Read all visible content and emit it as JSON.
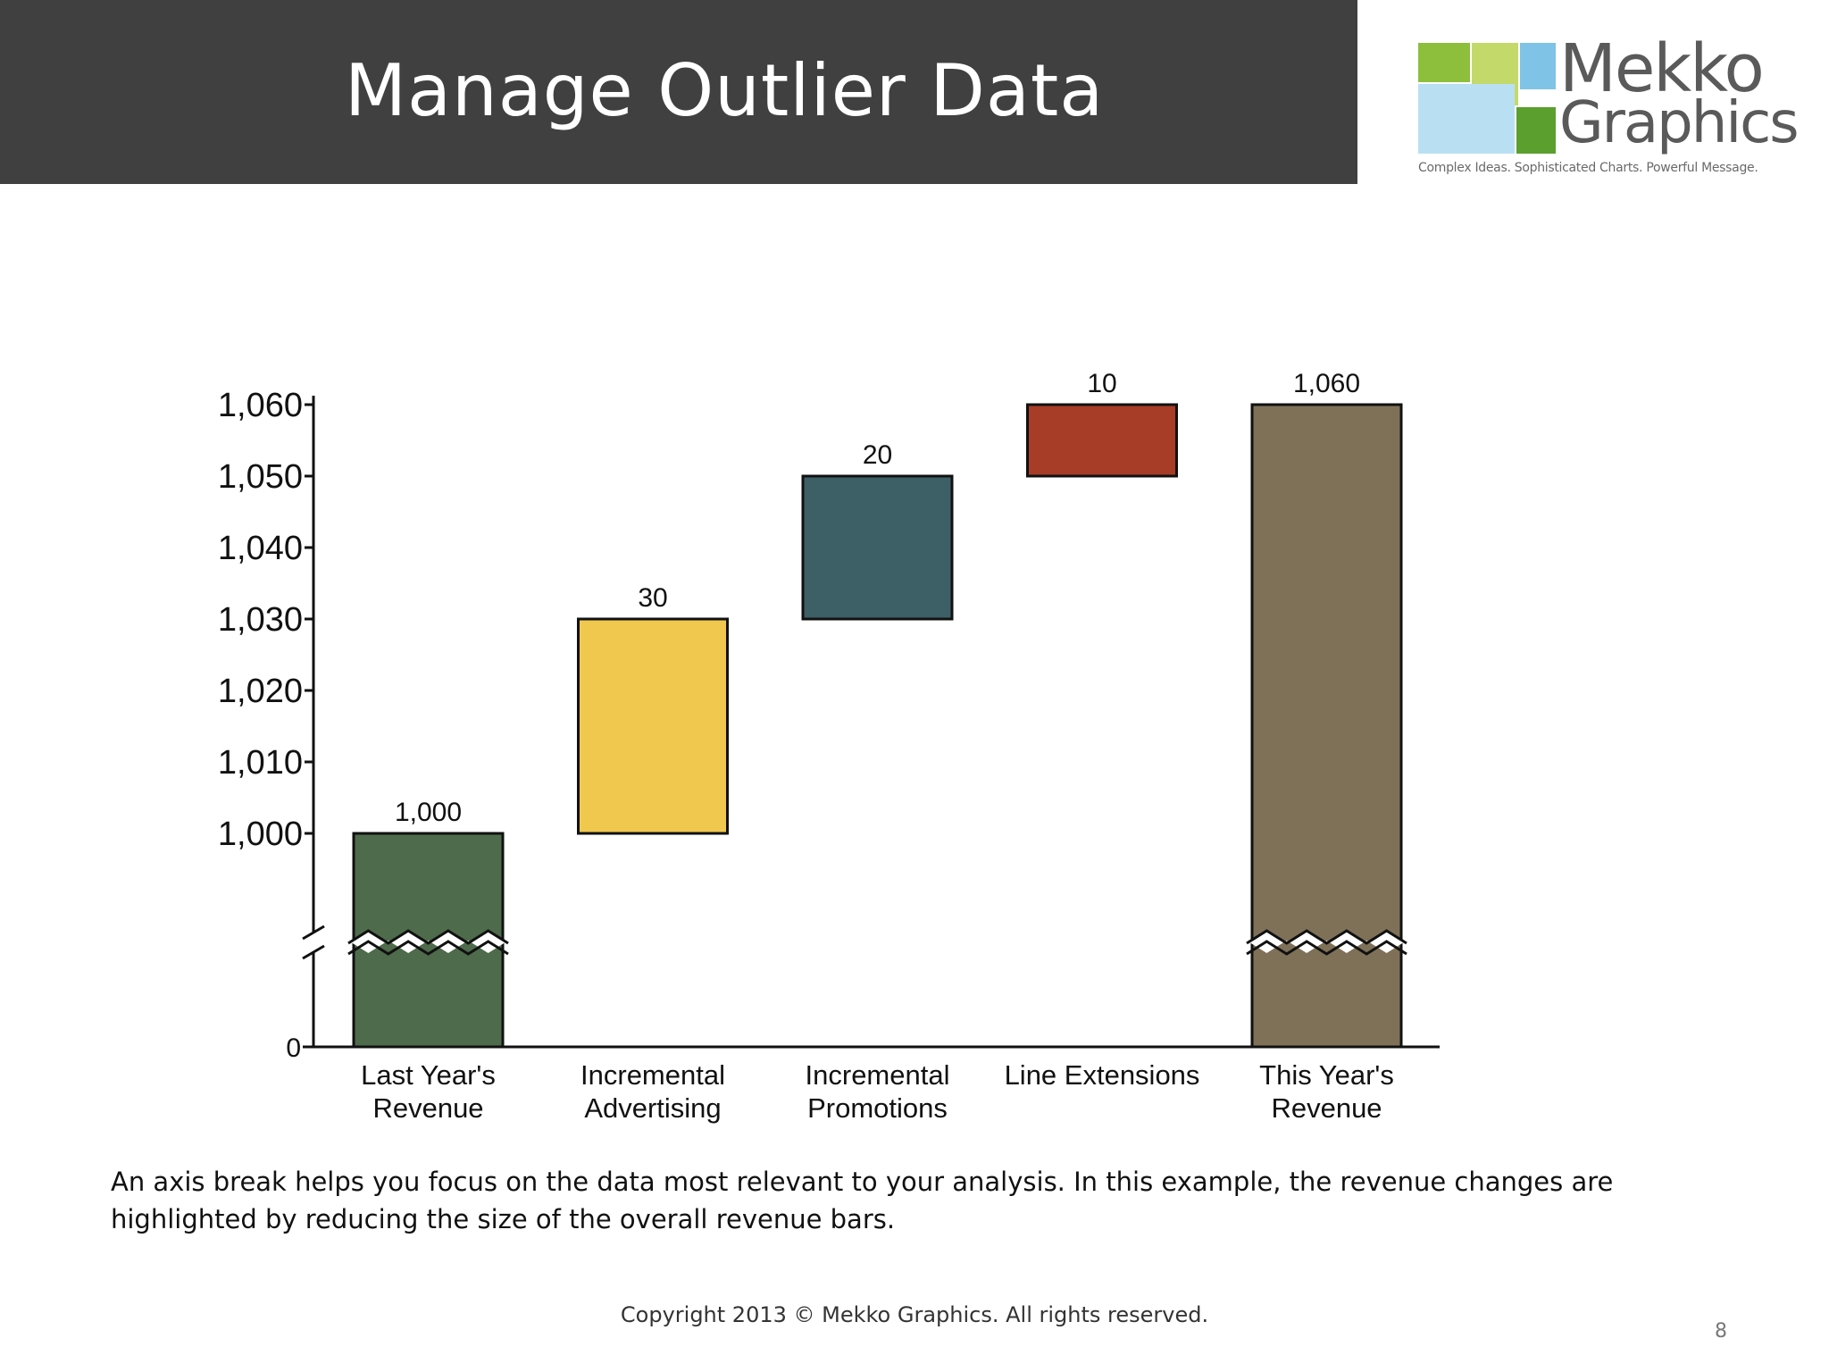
{
  "slide": {
    "title": "Manage Outlier Data",
    "caption": "An axis break helps you focus on the data most relevant to your analysis.  In this example, the revenue changes are highlighted by reducing the size of the overall revenue bars.",
    "copyright": "Copyright 2013 © Mekko Graphics. All rights reserved.",
    "page_number": "8"
  },
  "logo": {
    "word1": "Mekko",
    "word2": "Graphics",
    "tagline": "Complex Ideas. Sophisticated Charts. Powerful Message.",
    "colors": [
      "#8dbf3c",
      "#c3d96a",
      "#7fc3e6",
      "#b9e0f2",
      "#5b9f2e"
    ]
  },
  "chart_data": {
    "type": "bar",
    "subtype": "waterfall",
    "categories": [
      "Last Year's\nRevenue",
      "Incremental\nAdvertising",
      "Incremental\nPromotions",
      "Line Extensions",
      "This Year's\nRevenue"
    ],
    "bars": [
      {
        "start": 0,
        "end": 1000,
        "label": "1,000",
        "color": "#4e6b4c",
        "axis_break": true
      },
      {
        "start": 1000,
        "end": 1030,
        "label": "30",
        "color": "#f0c84e",
        "axis_break": false
      },
      {
        "start": 1030,
        "end": 1050,
        "label": "20",
        "color": "#3d5f66",
        "axis_break": false
      },
      {
        "start": 1050,
        "end": 1060,
        "label": "10",
        "color": "#a83d27",
        "axis_break": false
      },
      {
        "start": 0,
        "end": 1060,
        "label": "1,060",
        "color": "#7f7158",
        "axis_break": true
      }
    ],
    "y_ticks": [
      {
        "value": 1000,
        "label": "1,000"
      },
      {
        "value": 1010,
        "label": "1,010"
      },
      {
        "value": 1020,
        "label": "1,020"
      },
      {
        "value": 1030,
        "label": "1,030"
      },
      {
        "value": 1040,
        "label": "1,040"
      },
      {
        "value": 1050,
        "label": "1,050"
      },
      {
        "value": 1060,
        "label": "1,060"
      }
    ],
    "y_zero_label": "0",
    "ylim": [
      1000,
      1060
    ],
    "axis_break_between": [
      0,
      1000
    ],
    "title": "",
    "xlabel": "",
    "ylabel": "",
    "grid": false,
    "legend": "none"
  }
}
